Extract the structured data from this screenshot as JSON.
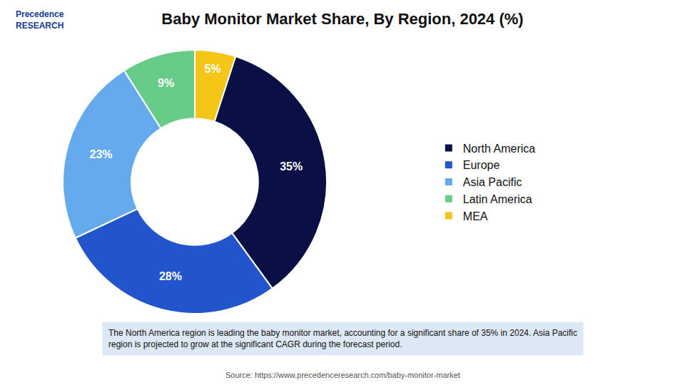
{
  "chart_data": {
    "type": "donut",
    "title": "Baby Monitor Market Share, By Region, 2024 (%)",
    "categories": [
      "North America",
      "Europe",
      "Asia Pacific",
      "Latin America",
      "MEA"
    ],
    "values": [
      35,
      28,
      23,
      9,
      5
    ],
    "value_labels": [
      "35%",
      "28%",
      "23%",
      "9%",
      "5%"
    ],
    "colors": [
      "#0a1045",
      "#2255cc",
      "#66aaee",
      "#66cc88",
      "#f5c518"
    ],
    "data_labels": true,
    "legend": "right",
    "annotations": [
      "The North America region is leading the baby monitor market, accounting for a significant share of 35% in 2024. Asia Pacific\nregion is projected to grow at the significant CAGR during the forecast period.",
      "Source: https://www.precedenceresearch.com/baby-monitor-market",
      "Precedence\nRESEARCH"
    ]
  }
}
